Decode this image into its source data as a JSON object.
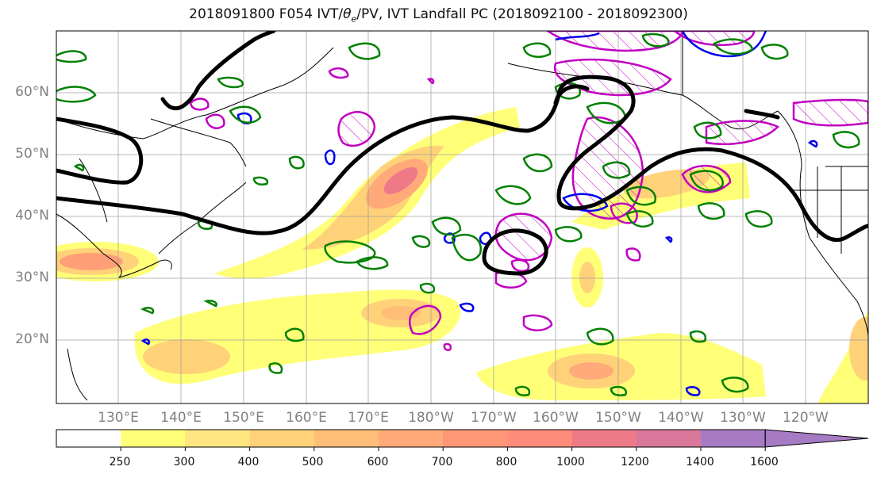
{
  "title_main": "2018091800 F054 IVT/",
  "title_theta": "θ",
  "title_sub": "e",
  "title_rest": "/PV, IVT Landfall PC (2018092100 - 2018092300)",
  "lat_labels": [
    "60°N",
    "50°N",
    "40°N",
    "30°N",
    "20°N"
  ],
  "lon_labels": [
    "130°E",
    "140°E",
    "150°E",
    "160°E",
    "170°E",
    "180°W",
    "170°W",
    "160°W",
    "150°W",
    "140°W",
    "130°W",
    "120°W"
  ],
  "colorbar": {
    "ticks": [
      "250",
      "300",
      "400",
      "500",
      "600",
      "700",
      "800",
      "1000",
      "1200",
      "1400",
      "1600"
    ],
    "colors": [
      "#ffffff",
      "#ffff78",
      "#ffe680",
      "#ffd27a",
      "#ffbe78",
      "#ffaa78",
      "#ff9678",
      "#ff8c7a",
      "#ee7a88",
      "#d9789a",
      "#a77ac4"
    ]
  },
  "colors": {
    "theta_e": "#000000",
    "pv_magenta": "#c000c0",
    "pv_blue": "#0000ee",
    "green": "#008000",
    "coast": "#000000",
    "grid": "#999999"
  }
}
